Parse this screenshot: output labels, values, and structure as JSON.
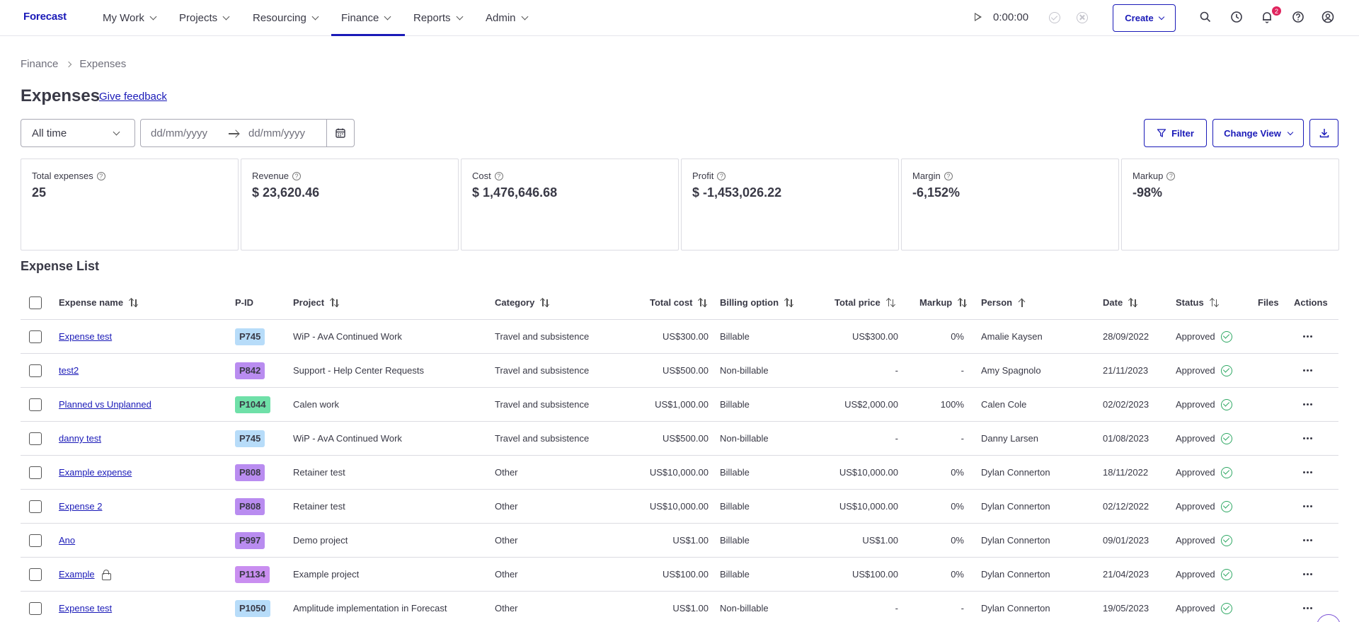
{
  "app": {
    "logo": "Forecast"
  },
  "nav": {
    "items": [
      {
        "label": "My Work"
      },
      {
        "label": "Projects"
      },
      {
        "label": "Resourcing"
      },
      {
        "label": "Finance"
      },
      {
        "label": "Reports"
      },
      {
        "label": "Admin"
      }
    ],
    "active": "Finance"
  },
  "timer": {
    "value": "0:00:00"
  },
  "create": {
    "label": "Create"
  },
  "notifications": {
    "count": "2"
  },
  "breadcrumb": {
    "root": "Finance",
    "current": "Expenses"
  },
  "page": {
    "title": "Expenses",
    "feedback": "Give feedback"
  },
  "filters": {
    "period": "All time",
    "date_from_placeholder": "dd/mm/yyyy",
    "date_to_placeholder": "dd/mm/yyyy",
    "filter_label": "Filter",
    "change_view_label": "Change View"
  },
  "kpis": [
    {
      "label": "Total expenses",
      "value": "25"
    },
    {
      "label": "Revenue",
      "value": "$ 23,620.46"
    },
    {
      "label": "Cost",
      "value": "$ 1,476,646.68"
    },
    {
      "label": "Profit",
      "value": "$ -1,453,026.22"
    },
    {
      "label": "Margin",
      "value": "-6,152%"
    },
    {
      "label": "Markup",
      "value": "-98%"
    }
  ],
  "list": {
    "title": "Expense List",
    "columns": {
      "name": "Expense name",
      "pid": "P-ID",
      "project": "Project",
      "category": "Category",
      "total_cost": "Total cost",
      "billing": "Billing option",
      "total_price": "Total price",
      "markup": "Markup",
      "person": "Person",
      "date": "Date",
      "status": "Status",
      "files": "Files",
      "actions": "Actions"
    },
    "rows": [
      {
        "name": "Expense test",
        "pid": "P745",
        "pid_color": "#b7dcf9",
        "project": "WiP - AvA Continued Work",
        "category": "Travel and subsistence",
        "total_cost": "US$300.00",
        "billing": "Billable",
        "total_price": "US$300.00",
        "markup": "0%",
        "person": "Amalie Kaysen",
        "date": "28/09/2022",
        "status": "Approved",
        "locked": false
      },
      {
        "name": "test2",
        "pid": "P842",
        "pid_color": "#b98cf0",
        "project": "Support - Help Center Requests",
        "category": "Travel and subsistence",
        "total_cost": "US$500.00",
        "billing": "Non-billable",
        "total_price": "-",
        "markup": "-",
        "person": "Amy Spagnolo",
        "date": "21/11/2023",
        "status": "Approved",
        "locked": false
      },
      {
        "name": "Planned vs Unplanned",
        "pid": "P1044",
        "pid_color": "#6fe0a8",
        "project": "Calen work",
        "category": "Travel and subsistence",
        "total_cost": "US$1,000.00",
        "billing": "Billable",
        "total_price": "US$2,000.00",
        "markup": "100%",
        "person": "Calen Cole",
        "date": "02/02/2023",
        "status": "Approved",
        "locked": false
      },
      {
        "name": "danny test",
        "pid": "P745",
        "pid_color": "#b7dcf9",
        "project": "WiP - AvA Continued Work",
        "category": "Travel and subsistence",
        "total_cost": "US$500.00",
        "billing": "Non-billable",
        "total_price": "-",
        "markup": "-",
        "person": "Danny Larsen",
        "date": "01/08/2023",
        "status": "Approved",
        "locked": false
      },
      {
        "name": "Example expense",
        "pid": "P808",
        "pid_color": "#b98cf0",
        "project": "Retainer test",
        "category": "Other",
        "total_cost": "US$10,000.00",
        "billing": "Billable",
        "total_price": "US$10,000.00",
        "markup": "0%",
        "person": "Dylan Connerton",
        "date": "18/11/2022",
        "status": "Approved",
        "locked": false
      },
      {
        "name": "Expense 2",
        "pid": "P808",
        "pid_color": "#b98cf0",
        "project": "Retainer test",
        "category": "Other",
        "total_cost": "US$10,000.00",
        "billing": "Billable",
        "total_price": "US$10,000.00",
        "markup": "0%",
        "person": "Dylan Connerton",
        "date": "02/12/2022",
        "status": "Approved",
        "locked": false
      },
      {
        "name": "Ano",
        "pid": "P997",
        "pid_color": "#b98cf0",
        "project": "Demo project",
        "category": "Other",
        "total_cost": "US$1.00",
        "billing": "Billable",
        "total_price": "US$1.00",
        "markup": "0%",
        "person": "Dylan Connerton",
        "date": "09/01/2023",
        "status": "Approved",
        "locked": false
      },
      {
        "name": "Example",
        "pid": "P1134",
        "pid_color": "#c98ef0",
        "project": "Example project",
        "category": "Other",
        "total_cost": "US$100.00",
        "billing": "Billable",
        "total_price": "US$100.00",
        "markup": "0%",
        "person": "Dylan Connerton",
        "date": "21/04/2023",
        "status": "Approved",
        "locked": true
      },
      {
        "name": "Expense test",
        "pid": "P1050",
        "pid_color": "#b7dcf9",
        "project": "Amplitude implementation in Forecast",
        "category": "Other",
        "total_cost": "US$1.00",
        "billing": "Non-billable",
        "total_price": "-",
        "markup": "-",
        "person": "Dylan Connerton",
        "date": "19/05/2023",
        "status": "Approved",
        "locked": false
      }
    ]
  }
}
